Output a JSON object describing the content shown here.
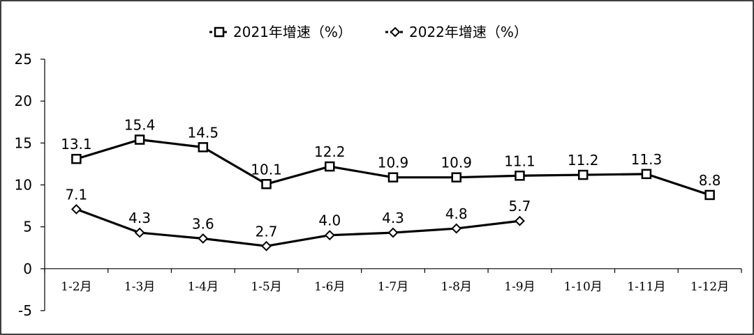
{
  "chart_data": {
    "type": "line",
    "title": "",
    "xlabel": "",
    "ylabel": "",
    "categories": [
      "1-2月",
      "1-3月",
      "1-4月",
      "1-5月",
      "1-6月",
      "1-7月",
      "1-8月",
      "1-9月",
      "1-10月",
      "1-11月",
      "1-12月"
    ],
    "series": [
      {
        "name": "2021年增速（%）",
        "marker": "square",
        "color": "#000000",
        "values": [
          13.1,
          15.4,
          14.5,
          10.1,
          12.2,
          10.9,
          10.9,
          11.1,
          11.2,
          11.3,
          8.8
        ],
        "labels": [
          "13.1",
          "15.4",
          "14.5",
          "10.1",
          "12.2",
          "10.9",
          "10.9",
          "11.1",
          "11.2",
          "11.3",
          "8.8"
        ]
      },
      {
        "name": "2022年增速（%）",
        "marker": "diamond",
        "color": "#000000",
        "values": [
          7.1,
          4.3,
          3.6,
          2.7,
          4.0,
          4.3,
          4.8,
          5.7,
          null,
          null,
          null
        ],
        "labels": [
          "7.1",
          "4.3",
          "3.6",
          "2.7",
          "4.0",
          "4.3",
          "4.8",
          "5.7",
          null,
          null,
          null
        ]
      }
    ],
    "ylim": [
      -5,
      25
    ],
    "yticks": [
      "25",
      "20",
      "15",
      "10",
      "5",
      "0",
      "-5"
    ],
    "ytick_values": [
      25,
      20,
      15,
      10,
      5,
      0,
      -5
    ],
    "grid": false,
    "legend": "top"
  }
}
